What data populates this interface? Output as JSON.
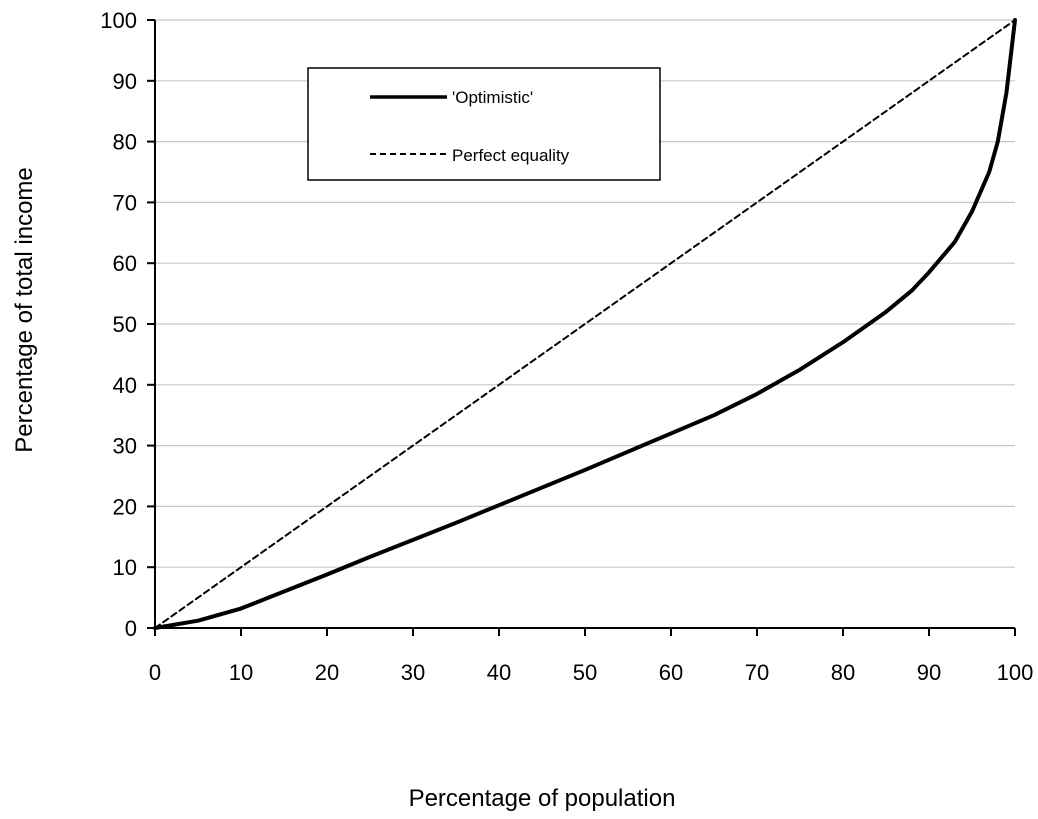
{
  "chart_data": {
    "type": "line",
    "title": "",
    "xlabel": "Percentage of population",
    "ylabel": "Percentage of total income",
    "xlim": [
      0,
      100
    ],
    "ylim": [
      0,
      100
    ],
    "xticks": [
      0,
      10,
      20,
      30,
      40,
      50,
      60,
      70,
      80,
      90,
      100
    ],
    "yticks": [
      0,
      10,
      20,
      30,
      40,
      50,
      60,
      70,
      80,
      90,
      100
    ],
    "grid": "horizontal",
    "legend_position": "top-left",
    "series": [
      {
        "name": "'Optimistic'",
        "style": "solid",
        "color": "#000000",
        "x": [
          0,
          5,
          10,
          15,
          20,
          25,
          30,
          35,
          40,
          45,
          50,
          55,
          60,
          65,
          70,
          75,
          80,
          85,
          88,
          90,
          93,
          95,
          97,
          98,
          99,
          100
        ],
        "y": [
          0,
          1.2,
          3.2,
          6,
          8.8,
          11.7,
          14.5,
          17.3,
          20.2,
          23.1,
          26,
          29,
          32,
          35,
          38.5,
          42.5,
          47,
          52,
          55.5,
          58.5,
          63.5,
          68.5,
          75,
          80,
          88,
          100
        ]
      },
      {
        "name": "Perfect equality",
        "style": "dashed",
        "color": "#000000",
        "x": [
          0,
          100
        ],
        "y": [
          0,
          100
        ]
      }
    ]
  }
}
